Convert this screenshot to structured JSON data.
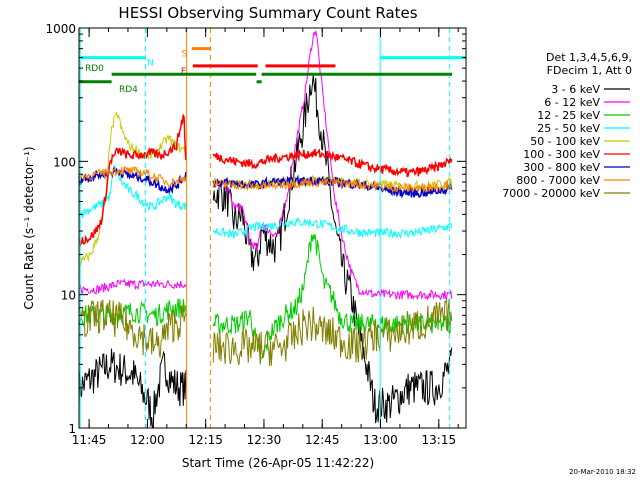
{
  "chart_data": {
    "type": "line",
    "title": "HESSI Observing Summary Count Rates",
    "xlabel": "Start Time (26-Apr-05 11:42:22)",
    "ylabel": "Count Rate (s⁻¹ detector⁻¹)",
    "x_units": "minutes after 11:42:22",
    "y_scale": "log",
    "xlim": [
      0,
      99.6
    ],
    "ylim": [
      1,
      1000
    ],
    "x_ticks": [
      {
        "t": 2.6,
        "label": "11:45"
      },
      {
        "t": 17.6,
        "label": "12:00"
      },
      {
        "t": 32.6,
        "label": "12:15"
      },
      {
        "t": 47.6,
        "label": "12:30"
      },
      {
        "t": 62.6,
        "label": "12:45"
      },
      {
        "t": 77.6,
        "label": "13:00"
      },
      {
        "t": 92.6,
        "label": "13:15"
      }
    ],
    "y_ticks": [
      {
        "v": 1,
        "label": "1"
      },
      {
        "v": 10,
        "label": "10"
      },
      {
        "v": 100,
        "label": "100"
      },
      {
        "v": 1000,
        "label": "1000"
      }
    ],
    "legend_header": [
      "Det 1,3,4,5,6,9,",
      "FDecim 1, Att 0"
    ],
    "legend_position": "right",
    "series": [
      {
        "name": "3 - 6 keV",
        "color": "#000000",
        "points": [
          [
            0,
            2
          ],
          [
            8,
            3
          ],
          [
            14,
            2.5
          ],
          [
            18,
            1.5
          ],
          [
            19,
            1.2
          ],
          [
            20,
            1.8
          ],
          [
            22,
            3
          ],
          [
            24,
            2.2
          ],
          [
            26,
            2
          ],
          [
            27.5,
            2
          ],
          [
            35,
            60
          ],
          [
            38,
            55
          ],
          [
            40,
            35
          ],
          [
            42,
            40
          ],
          [
            44,
            20
          ],
          [
            46,
            18
          ],
          [
            47,
            30
          ],
          [
            49,
            25
          ],
          [
            51,
            22
          ],
          [
            53,
            40
          ],
          [
            55,
            80
          ],
          [
            58,
            200
          ],
          [
            60,
            450
          ],
          [
            62,
            200
          ],
          [
            64,
            80
          ],
          [
            66,
            30
          ],
          [
            68,
            15
          ],
          [
            70,
            10
          ],
          [
            72,
            5
          ],
          [
            74,
            3
          ],
          [
            76,
            1.5
          ],
          [
            80,
            1.5
          ],
          [
            85,
            2
          ],
          [
            88,
            2
          ],
          [
            92,
            2
          ],
          [
            94,
            2.5
          ],
          [
            96,
            3
          ]
        ]
      },
      {
        "name": "6 - 12 keV",
        "color": "#ff00ff",
        "points": [
          [
            0,
            11
          ],
          [
            5,
            11
          ],
          [
            10,
            12
          ],
          [
            15,
            12
          ],
          [
            20,
            12
          ],
          [
            24,
            12
          ],
          [
            27.5,
            12
          ],
          [
            35,
            70
          ],
          [
            38,
            65
          ],
          [
            40,
            45
          ],
          [
            42,
            45
          ],
          [
            44,
            25
          ],
          [
            46,
            22
          ],
          [
            47,
            35
          ],
          [
            49,
            30
          ],
          [
            51,
            28
          ],
          [
            53,
            45
          ],
          [
            55,
            100
          ],
          [
            58,
            300
          ],
          [
            60,
            800
          ],
          [
            61,
            1000
          ],
          [
            62,
            500
          ],
          [
            64,
            150
          ],
          [
            66,
            50
          ],
          [
            68,
            25
          ],
          [
            70,
            15
          ],
          [
            72,
            11
          ],
          [
            76,
            10
          ],
          [
            82,
            10
          ],
          [
            88,
            10
          ],
          [
            92,
            10
          ],
          [
            96,
            10
          ]
        ]
      },
      {
        "name": "12 - 25 keV",
        "color": "#00cc00",
        "points": [
          [
            0,
            7
          ],
          [
            8,
            7
          ],
          [
            14,
            7.5
          ],
          [
            20,
            7
          ],
          [
            24,
            8
          ],
          [
            27.5,
            8
          ],
          [
            35,
            6
          ],
          [
            38,
            6
          ],
          [
            41,
            6
          ],
          [
            44,
            7
          ],
          [
            47,
            3
          ],
          [
            49,
            5
          ],
          [
            51,
            6
          ],
          [
            53,
            7
          ],
          [
            56,
            8
          ],
          [
            58,
            12
          ],
          [
            60,
            30
          ],
          [
            61,
            25
          ],
          [
            63,
            12
          ],
          [
            65,
            10
          ],
          [
            67,
            7
          ],
          [
            70,
            6
          ],
          [
            74,
            6
          ],
          [
            80,
            6
          ],
          [
            86,
            6
          ],
          [
            92,
            6
          ],
          [
            96,
            6
          ]
        ]
      },
      {
        "name": "25 - 50 keV",
        "color": "#00ffff",
        "points": [
          [
            0,
            40
          ],
          [
            6,
            48
          ],
          [
            8,
            55
          ],
          [
            9,
            90
          ],
          [
            11,
            70
          ],
          [
            13,
            60
          ],
          [
            15,
            55
          ],
          [
            17,
            48
          ],
          [
            19,
            45
          ],
          [
            21,
            50
          ],
          [
            23,
            55
          ],
          [
            25,
            48
          ],
          [
            27.5,
            46
          ],
          [
            35,
            30
          ],
          [
            40,
            28
          ],
          [
            45,
            32
          ],
          [
            50,
            33
          ],
          [
            54,
            35
          ],
          [
            58,
            35
          ],
          [
            62,
            34
          ],
          [
            66,
            32
          ],
          [
            70,
            30
          ],
          [
            74,
            29
          ],
          [
            80,
            29
          ],
          [
            86,
            29
          ],
          [
            92,
            31
          ],
          [
            96,
            33
          ]
        ]
      },
      {
        "name": "50 - 100 keV",
        "color": "#c8c800",
        "points": [
          [
            0,
            17
          ],
          [
            3,
            20
          ],
          [
            5,
            28
          ],
          [
            7,
            55
          ],
          [
            8,
            150
          ],
          [
            9,
            200
          ],
          [
            10,
            230
          ],
          [
            11,
            170
          ],
          [
            13,
            130
          ],
          [
            15,
            120
          ],
          [
            17,
            110
          ],
          [
            19,
            110
          ],
          [
            21,
            130
          ],
          [
            23,
            150
          ],
          [
            25,
            130
          ],
          [
            27.5,
            120
          ],
          [
            35,
            70
          ],
          [
            40,
            68
          ],
          [
            45,
            66
          ],
          [
            50,
            70
          ],
          [
            55,
            70
          ],
          [
            60,
            72
          ],
          [
            65,
            72
          ],
          [
            70,
            70
          ],
          [
            75,
            68
          ],
          [
            80,
            66
          ],
          [
            85,
            65
          ],
          [
            90,
            66
          ],
          [
            94,
            68
          ],
          [
            96,
            70
          ]
        ]
      },
      {
        "name": "100 - 300 keV",
        "color": "#ff0000",
        "points": [
          [
            0,
            25
          ],
          [
            3,
            27
          ],
          [
            5,
            32
          ],
          [
            6,
            38
          ],
          [
            7,
            60
          ],
          [
            8,
            100
          ],
          [
            10,
            120
          ],
          [
            13,
            110
          ],
          [
            16,
            112
          ],
          [
            19,
            115
          ],
          [
            21,
            110
          ],
          [
            23,
            120
          ],
          [
            25,
            130
          ],
          [
            27,
            230
          ],
          [
            27.5,
            100
          ],
          [
            35,
            110
          ],
          [
            40,
            100
          ],
          [
            45,
            95
          ],
          [
            50,
            105
          ],
          [
            55,
            110
          ],
          [
            60,
            115
          ],
          [
            65,
            110
          ],
          [
            70,
            100
          ],
          [
            75,
            90
          ],
          [
            80,
            85
          ],
          [
            85,
            82
          ],
          [
            88,
            84
          ],
          [
            92,
            90
          ],
          [
            96,
            102
          ]
        ]
      },
      {
        "name": "300 - 800 keV",
        "color": "#0000cc",
        "points": [
          [
            0,
            72
          ],
          [
            4,
            78
          ],
          [
            7,
            82
          ],
          [
            10,
            85
          ],
          [
            13,
            78
          ],
          [
            16,
            76
          ],
          [
            19,
            70
          ],
          [
            22,
            62
          ],
          [
            25,
            65
          ],
          [
            27.5,
            80
          ],
          [
            35,
            70
          ],
          [
            40,
            68
          ],
          [
            45,
            66
          ],
          [
            50,
            70
          ],
          [
            55,
            70
          ],
          [
            60,
            72
          ],
          [
            65,
            70
          ],
          [
            70,
            68
          ],
          [
            75,
            65
          ],
          [
            80,
            60
          ],
          [
            85,
            58
          ],
          [
            88,
            58
          ],
          [
            92,
            60
          ],
          [
            96,
            63
          ]
        ]
      },
      {
        "name": "800 - 7000 keV",
        "color": "#ff8000",
        "points": [
          [
            0,
            76
          ],
          [
            5,
            80
          ],
          [
            8,
            84
          ],
          [
            11,
            86
          ],
          [
            14,
            84
          ],
          [
            17,
            82
          ],
          [
            20,
            75
          ],
          [
            23,
            70
          ],
          [
            25,
            70
          ],
          [
            27.5,
            76
          ],
          [
            35,
            68
          ],
          [
            40,
            67
          ],
          [
            45,
            65
          ],
          [
            50,
            66
          ],
          [
            55,
            68
          ],
          [
            60,
            70
          ],
          [
            65,
            69
          ],
          [
            70,
            68
          ],
          [
            75,
            66
          ],
          [
            80,
            64
          ],
          [
            85,
            63
          ],
          [
            88,
            63
          ],
          [
            92,
            65
          ],
          [
            96,
            68
          ]
        ]
      },
      {
        "name": "7000 - 20000 keV",
        "color": "#808000",
        "points": [
          [
            0,
            6
          ],
          [
            5,
            7
          ],
          [
            10,
            6.5
          ],
          [
            14,
            5.5
          ],
          [
            18,
            4.5
          ],
          [
            20,
            4
          ],
          [
            22,
            5
          ],
          [
            24,
            6
          ],
          [
            27.5,
            6.5
          ],
          [
            35,
            4
          ],
          [
            40,
            4
          ],
          [
            44,
            4
          ],
          [
            48,
            4
          ],
          [
            52,
            4
          ],
          [
            56,
            5
          ],
          [
            58,
            6
          ],
          [
            60,
            6
          ],
          [
            62,
            5.5
          ],
          [
            65,
            5
          ],
          [
            68,
            4.5
          ],
          [
            72,
            4
          ],
          [
            76,
            5
          ],
          [
            80,
            5
          ],
          [
            84,
            5.5
          ],
          [
            88,
            6
          ],
          [
            92,
            6.5
          ],
          [
            96,
            7
          ]
        ]
      }
    ],
    "annotations": {
      "vertical_lines": [
        {
          "t": 0.3,
          "color": "#00ffff",
          "dashed": false
        },
        {
          "t": 17.1,
          "color": "#00ffff",
          "dashed": true
        },
        {
          "t": 27.7,
          "color": "#ff8000",
          "dashed": false
        },
        {
          "t": 33.8,
          "color": "#ff8000",
          "dashed": true
        },
        {
          "t": 77.5,
          "color": "#00ffff",
          "dashed": false
        },
        {
          "t": 95.4,
          "color": "#00ffff",
          "dashed": true
        }
      ],
      "flag_bars": [
        {
          "label": "S",
          "color": "#ff8000",
          "y": 700,
          "segments": [
            [
              29,
              34
            ]
          ]
        },
        {
          "label": "N",
          "color": "#00ffff",
          "y": 600,
          "segments": [
            [
              0,
              17
            ],
            [
              77.5,
              99.6
            ]
          ]
        },
        {
          "label": "F",
          "color": "#ff0000",
          "y": 520,
          "segments": [
            [
              29.3,
              46
            ],
            [
              48,
              66
            ]
          ]
        },
        {
          "label": "RD0",
          "color": "#008000",
          "y": 450,
          "segments": [
            [
              8.4,
              45.6
            ],
            [
              47,
              96
            ]
          ]
        },
        {
          "label": "RD4",
          "color": "#008000",
          "y": 395,
          "segments": [
            [
              0,
              8.4
            ],
            [
              45.7,
              47
            ]
          ]
        }
      ]
    },
    "footer_timestamp": "20-Mar-2010 18:32"
  }
}
